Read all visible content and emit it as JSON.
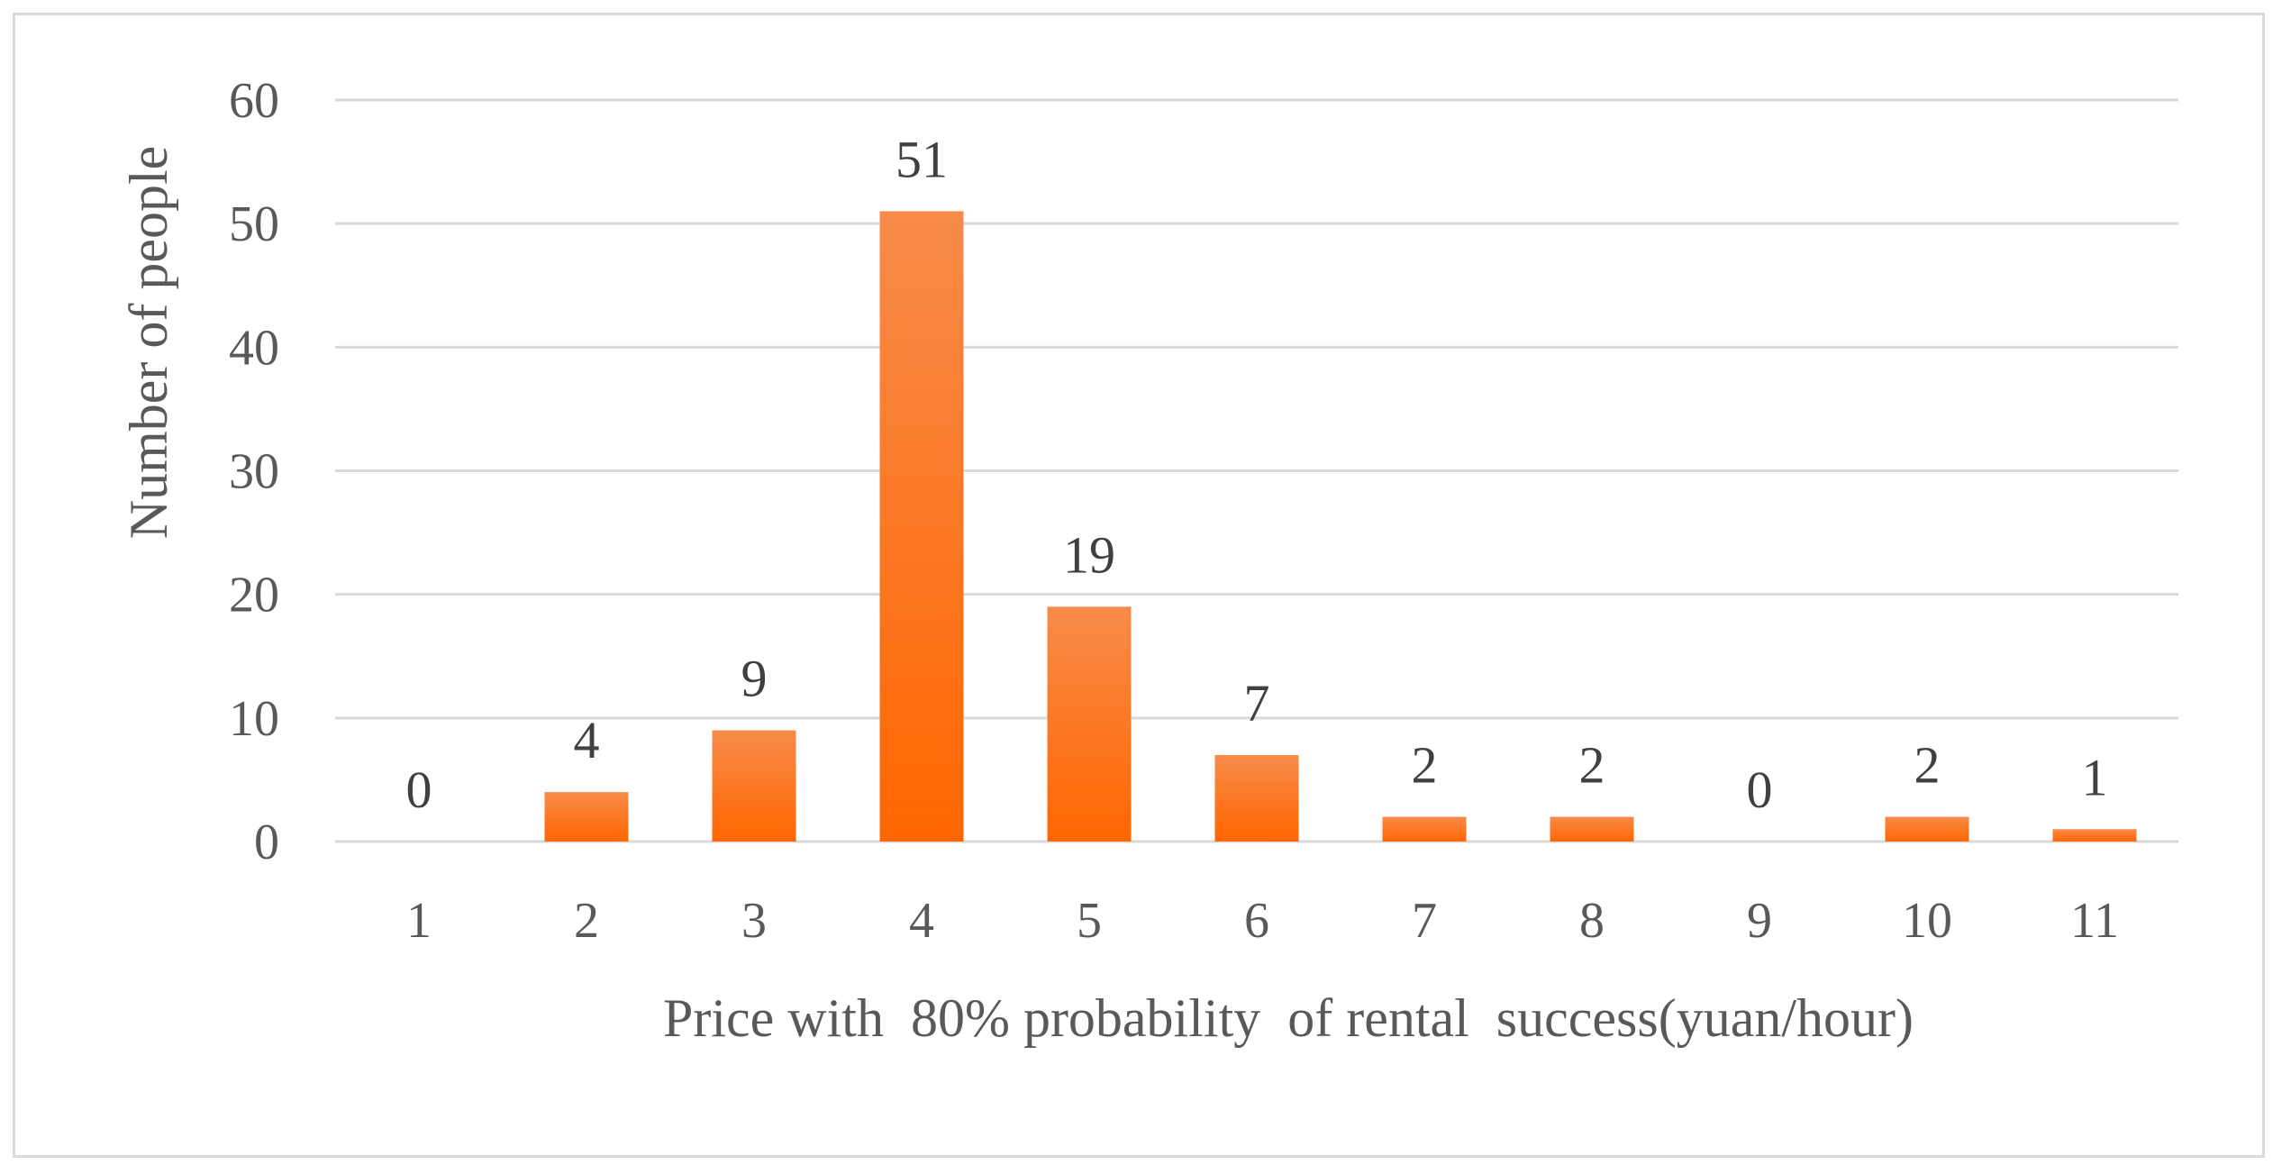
{
  "chart_data": {
    "type": "bar",
    "categories": [
      "1",
      "2",
      "3",
      "4",
      "5",
      "6",
      "7",
      "8",
      "9",
      "10",
      "11"
    ],
    "values": [
      0,
      4,
      9,
      51,
      19,
      7,
      2,
      2,
      0,
      2,
      1
    ],
    "xlabel": "Price with  80% probability  of rental  success(yuan/hour)",
    "ylabel": "Number of people",
    "ylim": [
      0,
      60
    ],
    "yticks": [
      0,
      10,
      20,
      30,
      40,
      50,
      60
    ],
    "grid": true,
    "legend": "none",
    "bar_color_top": "#f88b4a",
    "bar_color_bottom": "#ff6600",
    "grid_color": "#d9d9d9"
  }
}
